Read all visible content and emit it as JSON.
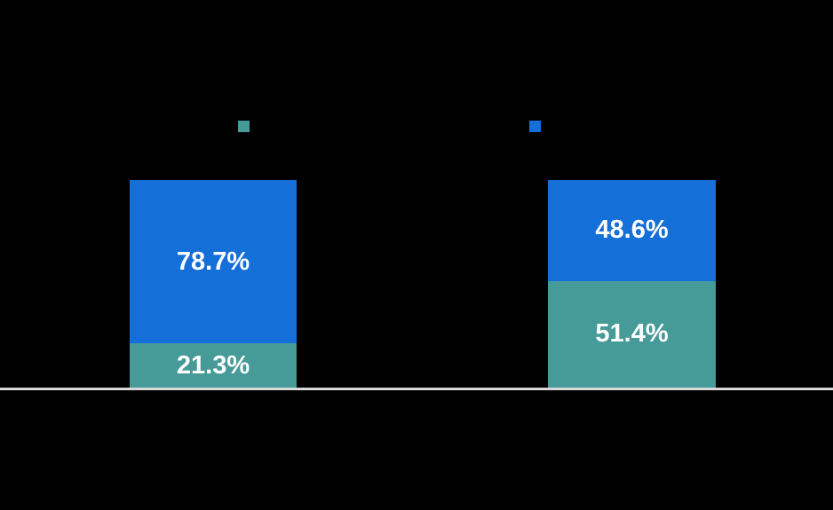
{
  "chart_data": {
    "type": "bar",
    "variant": "stacked-percentage",
    "unit": "%",
    "ylim": [
      0,
      100
    ],
    "background_color": "#000000",
    "axis_line_color": "#d9d9d9",
    "label_color": "#ffffff",
    "legend_position": "top",
    "categories": [
      "",
      ""
    ],
    "series": [
      {
        "name": "teal",
        "color": "#469a98",
        "values": [
          21.3,
          51.4
        ]
      },
      {
        "name": "blue",
        "color": "#146fd9",
        "values": [
          78.7,
          48.6
        ]
      }
    ],
    "bars": [
      {
        "segments": [
          {
            "series": "blue",
            "value": 78.7,
            "label": "78.7%"
          },
          {
            "series": "teal",
            "value": 21.3,
            "label": "21.3%"
          }
        ]
      },
      {
        "segments": [
          {
            "series": "blue",
            "value": 48.6,
            "label": "48.6%"
          },
          {
            "series": "teal",
            "value": 51.4,
            "label": "51.4%"
          }
        ]
      }
    ]
  }
}
